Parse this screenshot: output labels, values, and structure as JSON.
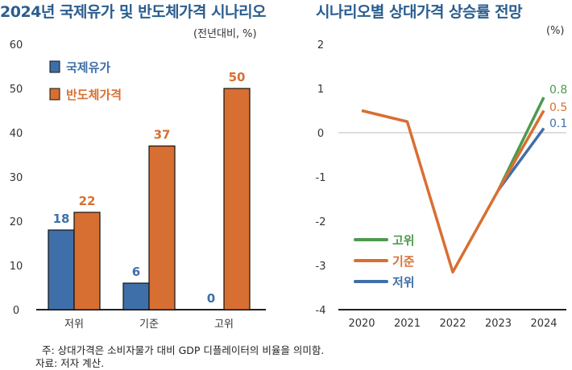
{
  "chart_data": [
    {
      "type": "bar",
      "title": "2024년 국제유가 및 반도체가격 시나리오",
      "unit": "(전년대비, %)",
      "categories": [
        "저위",
        "기준",
        "고위"
      ],
      "series": [
        {
          "name": "국제유가",
          "values": [
            18,
            6,
            0
          ],
          "color": "#3f6fa8"
        },
        {
          "name": "반도체가격",
          "values": [
            22,
            37,
            50
          ],
          "color": "#d86f32"
        }
      ],
      "ylim": [
        0,
        60
      ],
      "yticks": [
        0,
        10,
        20,
        30,
        40,
        50,
        60
      ],
      "legend": "top-left",
      "grid": false
    },
    {
      "type": "line",
      "title": "시나리오별 상대가격 상승률 전망",
      "unit": "(%)",
      "x": [
        2020,
        2021,
        2022,
        2023,
        2024
      ],
      "series": [
        {
          "name": "고위",
          "values": [
            null,
            null,
            null,
            -1.3,
            0.8
          ],
          "color": "#4e9a4e",
          "end_label": "0.8"
        },
        {
          "name": "기준",
          "values": [
            0.5,
            0.25,
            -3.15,
            -1.3,
            0.5
          ],
          "color": "#d86f32",
          "end_label": "0.5"
        },
        {
          "name": "저위",
          "values": [
            null,
            null,
            null,
            -1.3,
            0.1
          ],
          "color": "#3f6fa8",
          "end_label": "0.1"
        }
      ],
      "ylim": [
        -4,
        2
      ],
      "yticks": [
        -4,
        -3,
        -2,
        -1,
        0,
        1,
        2
      ],
      "legend": "bottom-left",
      "grid": false
    }
  ],
  "footnote": "주: 상대가격은 소비자물가 대비 GDP 디플레이터의 비율을 의미함.",
  "source": "자료: 저자 계산."
}
